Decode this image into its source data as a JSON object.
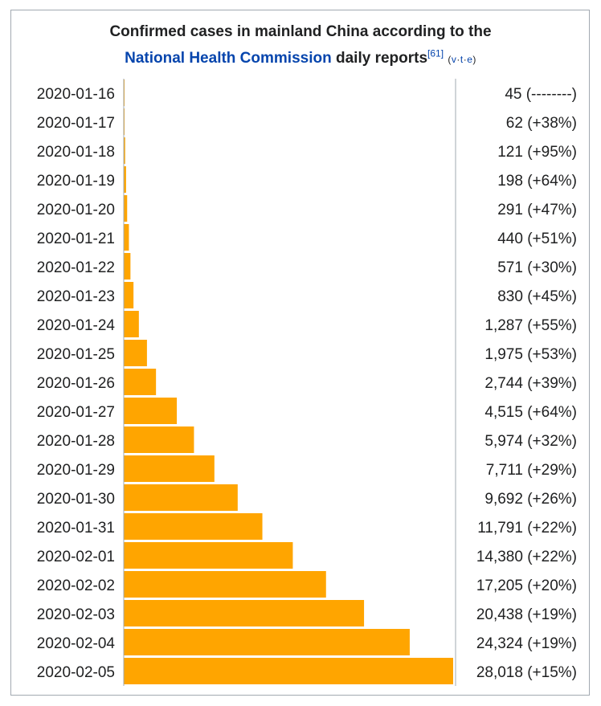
{
  "header": {
    "title_line1": "Confirmed cases in mainland China according to the",
    "title_link": "National Health Commission",
    "title_rest": " daily reports",
    "citation": "[61]",
    "vte_open": "(",
    "vte_v": "v",
    "vte_t": "t",
    "vte_e": "e",
    "vte_sep": "·",
    "vte_close": ")"
  },
  "colors": {
    "bar": "#ffa500",
    "axis": "#a2a9b1",
    "text": "#202122",
    "link": "#0645ad"
  },
  "chart_data": {
    "type": "bar",
    "orientation": "horizontal",
    "title": "Confirmed cases in mainland China according to the National Health Commission daily reports",
    "categories": [
      "2020-01-16",
      "2020-01-17",
      "2020-01-18",
      "2020-01-19",
      "2020-01-20",
      "2020-01-21",
      "2020-01-22",
      "2020-01-23",
      "2020-01-24",
      "2020-01-25",
      "2020-01-26",
      "2020-01-27",
      "2020-01-28",
      "2020-01-29",
      "2020-01-30",
      "2020-01-31",
      "2020-02-01",
      "2020-02-02",
      "2020-02-03",
      "2020-02-04",
      "2020-02-05"
    ],
    "values": [
      45,
      62,
      121,
      198,
      291,
      440,
      571,
      830,
      1287,
      1975,
      2744,
      4515,
      5974,
      7711,
      9692,
      11791,
      14380,
      17205,
      20438,
      24324,
      28018
    ],
    "value_labels": [
      "45 (--------)",
      "62 (+38%)",
      "121 (+95%)",
      "198 (+64%)",
      "291 (+47%)",
      "440 (+51%)",
      "571 (+30%)",
      "830 (+45%)",
      "1,287 (+55%)",
      "1,975 (+53%)",
      "2,744 (+39%)",
      "4,515 (+64%)",
      "5,974 (+32%)",
      "7,711 (+29%)",
      "9,692 (+26%)",
      "11,791 (+22%)",
      "14,380 (+22%)",
      "17,205 (+20%)",
      "20,438 (+19%)",
      "24,324 (+19%)",
      "28,018 (+15%)"
    ],
    "xlim": [
      0,
      28018
    ]
  }
}
